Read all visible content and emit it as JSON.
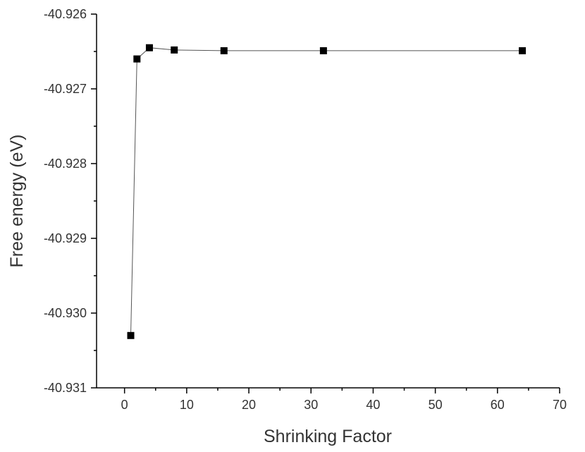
{
  "chart_data": {
    "type": "line",
    "title": "",
    "xlabel": "Shrinking Factor",
    "ylabel": "Free energy (eV)",
    "xlim": [
      -4.5,
      70
    ],
    "ylim": [
      -40.931,
      -40.926
    ],
    "x_ticks": [
      0,
      10,
      20,
      30,
      40,
      50,
      60,
      70
    ],
    "y_ticks": [
      -40.926,
      -40.927,
      -40.928,
      -40.929,
      -40.93,
      -40.931
    ],
    "x_tick_labels": [
      "0",
      "10",
      "20",
      "30",
      "40",
      "50",
      "60",
      "70"
    ],
    "y_tick_labels": [
      "-40.926",
      "-40.927",
      "-40.928",
      "-40.929",
      "-40.930",
      "-40.931"
    ],
    "grid": false,
    "marker": "square",
    "series": [
      {
        "x": [
          1,
          2,
          4,
          8,
          16,
          32,
          64
        ],
        "y": [
          -40.9303,
          -40.9266,
          -40.92645,
          -40.92648,
          -40.92649,
          -40.92649,
          -40.92649
        ]
      }
    ]
  }
}
